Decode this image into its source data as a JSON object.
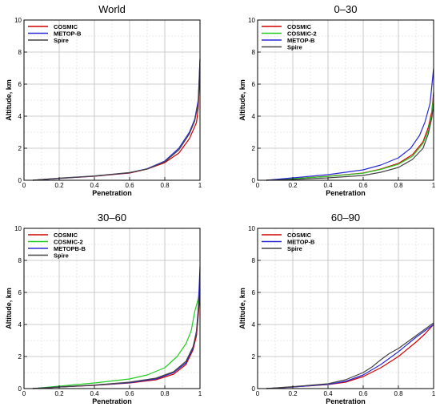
{
  "colors": {
    "COSMIC": "#d40000",
    "COSMIC-2": "#22cc22",
    "METOP-B": "#2a2ad6",
    "METOPB-B": "#2a2ad6",
    "Spire": "#444444"
  },
  "chart_data": [
    {
      "type": "line",
      "title": "World",
      "xlabel": "Penetration",
      "ylabel": "Altitude, km",
      "xlim": [
        0,
        1
      ],
      "ylim": [
        0,
        10
      ],
      "xticks": [
        0,
        0.2,
        0.4,
        0.6,
        0.8,
        1
      ],
      "yticks": [
        0,
        2,
        4,
        6,
        8,
        10
      ],
      "tick_labels_x": [
        "0",
        "0.2",
        "0.4",
        "0.6",
        "0.8",
        "1"
      ],
      "tick_labels_y": [
        "0",
        "2",
        "4",
        "6",
        "8",
        "10"
      ],
      "grid": true,
      "legend_position": "top-left",
      "series": [
        {
          "name": "COSMIC",
          "x": [
            0.05,
            0.2,
            0.4,
            0.6,
            0.7,
            0.8,
            0.88,
            0.94,
            0.98,
            0.99,
            1.0
          ],
          "y": [
            0.0,
            0.12,
            0.25,
            0.45,
            0.7,
            1.1,
            1.7,
            2.6,
            3.6,
            4.5,
            7.0
          ]
        },
        {
          "name": "METOP-B",
          "x": [
            0.05,
            0.2,
            0.4,
            0.6,
            0.7,
            0.8,
            0.88,
            0.94,
            0.97,
            0.99,
            1.0
          ],
          "y": [
            0.0,
            0.12,
            0.26,
            0.47,
            0.72,
            1.2,
            2.0,
            3.0,
            3.8,
            5.0,
            7.6
          ]
        },
        {
          "name": "Spire",
          "x": [
            0.05,
            0.2,
            0.4,
            0.6,
            0.7,
            0.8,
            0.88,
            0.94,
            0.97,
            0.99,
            1.0
          ],
          "y": [
            0.0,
            0.13,
            0.27,
            0.48,
            0.7,
            1.15,
            1.9,
            2.9,
            3.7,
            4.8,
            7.5
          ]
        }
      ]
    },
    {
      "type": "line",
      "title": "0–30",
      "xlabel": "Penetration",
      "ylabel": "Altitude, km",
      "xlim": [
        0,
        1
      ],
      "ylim": [
        0,
        10
      ],
      "xticks": [
        0,
        0.2,
        0.4,
        0.6,
        0.8,
        1
      ],
      "yticks": [
        0,
        2,
        4,
        6,
        8,
        10
      ],
      "tick_labels_x": [
        "0",
        "0.2",
        "0.4",
        "0.6",
        "0.8",
        "1"
      ],
      "tick_labels_y": [
        "0",
        "2",
        "4",
        "6",
        "8",
        "10"
      ],
      "grid": true,
      "legend_position": "top-left",
      "series": [
        {
          "name": "COSMIC",
          "x": [
            0.05,
            0.2,
            0.4,
            0.6,
            0.7,
            0.8,
            0.88,
            0.94,
            0.97,
            0.99,
            1.0
          ],
          "y": [
            0.0,
            0.1,
            0.25,
            0.45,
            0.7,
            1.05,
            1.6,
            2.4,
            3.3,
            4.3,
            5.5
          ]
        },
        {
          "name": "COSMIC-2",
          "x": [
            0.05,
            0.2,
            0.4,
            0.6,
            0.7,
            0.8,
            0.88,
            0.94,
            0.97,
            0.99,
            1.0
          ],
          "y": [
            0.0,
            0.1,
            0.24,
            0.44,
            0.68,
            1.0,
            1.5,
            2.3,
            3.1,
            4.1,
            5.3
          ]
        },
        {
          "name": "METOP-B",
          "x": [
            0.05,
            0.2,
            0.4,
            0.6,
            0.7,
            0.8,
            0.87,
            0.92,
            0.95,
            0.98,
            1.0
          ],
          "y": [
            0.0,
            0.15,
            0.35,
            0.65,
            0.95,
            1.4,
            2.0,
            2.8,
            3.6,
            4.8,
            7.0
          ]
        },
        {
          "name": "Spire",
          "x": [
            0.05,
            0.2,
            0.4,
            0.6,
            0.7,
            0.8,
            0.88,
            0.94,
            0.97,
            0.99,
            1.0
          ],
          "y": [
            0.0,
            0.05,
            0.15,
            0.3,
            0.5,
            0.8,
            1.3,
            2.0,
            2.9,
            3.9,
            4.8
          ]
        }
      ]
    },
    {
      "type": "line",
      "title": "30–60",
      "xlabel": "Penetration",
      "ylabel": "Altitude, km",
      "xlim": [
        0,
        1
      ],
      "ylim": [
        0,
        10
      ],
      "xticks": [
        0,
        0.2,
        0.4,
        0.6,
        0.8,
        1
      ],
      "yticks": [
        0,
        2,
        4,
        6,
        8,
        10
      ],
      "tick_labels_x": [
        "0",
        "0.2",
        "0.4",
        "0.6",
        "0.8",
        "1"
      ],
      "tick_labels_y": [
        "0",
        "2",
        "4",
        "6",
        "8",
        "10"
      ],
      "grid": true,
      "legend_position": "top-left",
      "series": [
        {
          "name": "COSMIC",
          "x": [
            0.05,
            0.2,
            0.4,
            0.6,
            0.75,
            0.85,
            0.92,
            0.96,
            0.98,
            0.99,
            1.0
          ],
          "y": [
            0.0,
            0.1,
            0.2,
            0.35,
            0.55,
            0.9,
            1.5,
            2.4,
            3.3,
            4.5,
            6.0
          ]
        },
        {
          "name": "COSMIC-2",
          "x": [
            0.05,
            0.2,
            0.4,
            0.6,
            0.7,
            0.8,
            0.87,
            0.92,
            0.95,
            0.97,
            0.99,
            1.0
          ],
          "y": [
            0.0,
            0.15,
            0.35,
            0.6,
            0.85,
            1.3,
            2.0,
            2.8,
            3.6,
            4.8,
            5.6,
            6.5
          ]
        },
        {
          "name": "METOPB-B",
          "x": [
            0.05,
            0.2,
            0.4,
            0.6,
            0.75,
            0.85,
            0.92,
            0.96,
            0.98,
            0.99,
            1.0
          ],
          "y": [
            0.0,
            0.1,
            0.21,
            0.37,
            0.6,
            1.0,
            1.6,
            2.5,
            3.6,
            5.0,
            7.6
          ]
        },
        {
          "name": "Spire",
          "x": [
            0.05,
            0.2,
            0.4,
            0.6,
            0.75,
            0.85,
            0.92,
            0.96,
            0.98,
            0.99,
            1.0
          ],
          "y": [
            0.0,
            0.1,
            0.22,
            0.4,
            0.65,
            1.05,
            1.7,
            2.6,
            3.5,
            4.8,
            6.2
          ]
        }
      ]
    },
    {
      "type": "line",
      "title": "60–90",
      "xlabel": "Penetration",
      "ylabel": "Altitude, km",
      "xlim": [
        0,
        1
      ],
      "ylim": [
        0,
        10
      ],
      "xticks": [
        0,
        0.2,
        0.4,
        0.6,
        0.8,
        1
      ],
      "yticks": [
        0,
        2,
        4,
        6,
        8,
        10
      ],
      "tick_labels_x": [
        "0",
        "0.2",
        "0.4",
        "0.6",
        "0.8",
        "1"
      ],
      "tick_labels_y": [
        "0",
        "2",
        "4",
        "6",
        "8",
        "10"
      ],
      "grid": true,
      "legend_position": "top-left",
      "series": [
        {
          "name": "COSMIC",
          "x": [
            0.05,
            0.2,
            0.4,
            0.5,
            0.6,
            0.7,
            0.8,
            0.9,
            0.95,
            1.0
          ],
          "y": [
            0.0,
            0.1,
            0.25,
            0.4,
            0.75,
            1.3,
            2.0,
            2.9,
            3.4,
            4.0
          ]
        },
        {
          "name": "METOP-B",
          "x": [
            0.05,
            0.2,
            0.4,
            0.5,
            0.6,
            0.7,
            0.8,
            0.9,
            0.95,
            1.0
          ],
          "y": [
            0.0,
            0.1,
            0.26,
            0.45,
            0.85,
            1.5,
            2.3,
            3.2,
            3.6,
            4.0
          ]
        },
        {
          "name": "Spire",
          "x": [
            0.05,
            0.2,
            0.4,
            0.5,
            0.6,
            0.65,
            0.7,
            0.75,
            0.8,
            0.85,
            0.9,
            0.95,
            1.0
          ],
          "y": [
            0.0,
            0.12,
            0.3,
            0.55,
            1.0,
            1.35,
            1.8,
            2.2,
            2.5,
            2.9,
            3.3,
            3.7,
            4.1
          ]
        }
      ]
    }
  ]
}
